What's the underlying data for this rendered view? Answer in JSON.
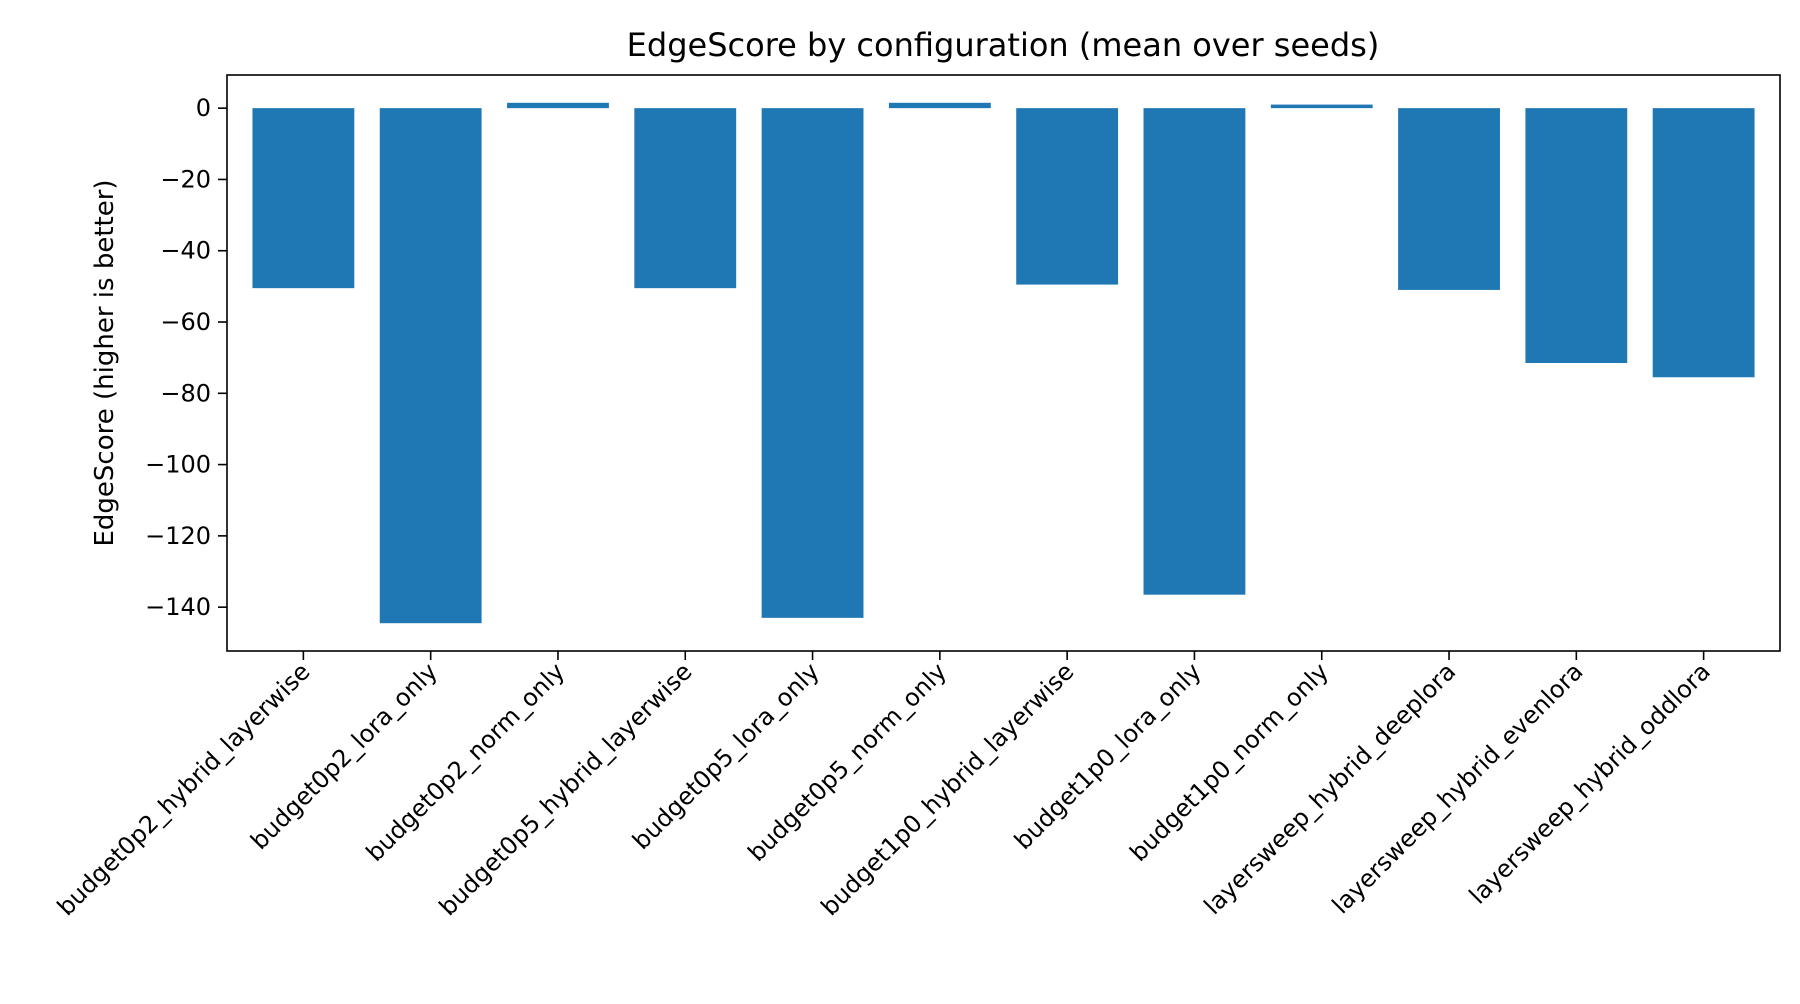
{
  "chart_data": {
    "type": "bar",
    "title": "EdgeScore by configuration (mean over seeds)",
    "xlabel": "",
    "ylabel": "EdgeScore (higher is better)",
    "categories": [
      "budget0p2_hybrid_layerwise",
      "budget0p2_lora_only",
      "budget0p2_norm_only",
      "budget0p5_hybrid_layerwise",
      "budget0p5_lora_only",
      "budget0p5_norm_only",
      "budget1p0_hybrid_layerwise",
      "budget1p0_lora_only",
      "budget1p0_norm_only",
      "layersweep_hybrid_deeplora",
      "layersweep_hybrid_evenlora",
      "layersweep_hybrid_oddlora"
    ],
    "values": [
      -50.5,
      -144.5,
      1.5,
      -50.5,
      -143.0,
      1.5,
      -49.5,
      -136.5,
      1.0,
      -51.0,
      -71.5,
      -75.5
    ],
    "ylim": [
      -152.3,
      9.3
    ],
    "yticks": [
      0,
      -20,
      -40,
      -60,
      -80,
      -100,
      -120,
      -140
    ],
    "bar_color": "#1f77b4",
    "grid": false,
    "legend": "none"
  }
}
